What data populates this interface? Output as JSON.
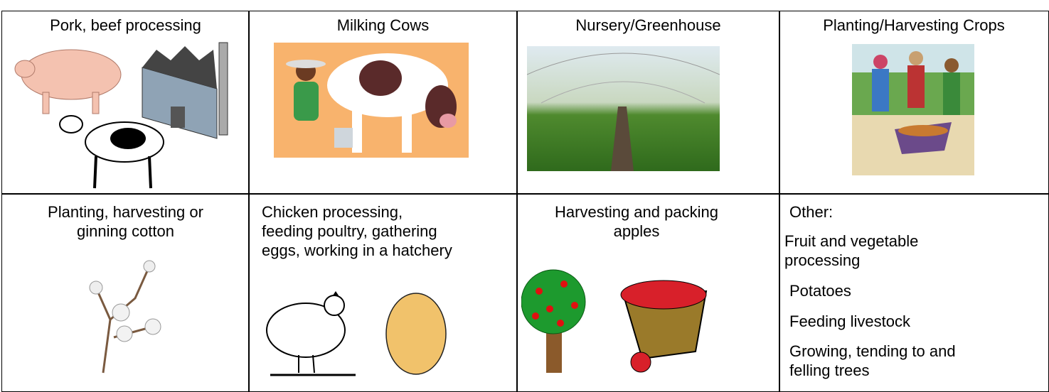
{
  "table": {
    "rows": [
      [
        {
          "label": "Pork, beef processing"
        },
        {
          "label": "Milking Cows"
        },
        {
          "label": "Nursery/Greenhouse"
        },
        {
          "label": "Planting/Harvesting Crops"
        }
      ],
      [
        {
          "label": "Planting, harvesting or ginning cotton"
        },
        {
          "label": "Chicken processing, feeding poultry, gathering eggs, working in a hatchery"
        },
        {
          "label": "Harvesting and packing apples"
        },
        {
          "label": "Other:",
          "items": [
            "Fruit and vegetable processing",
            "Potatoes",
            "Feeding livestock",
            "Growing, tending to and felling trees"
          ]
        }
      ]
    ]
  }
}
